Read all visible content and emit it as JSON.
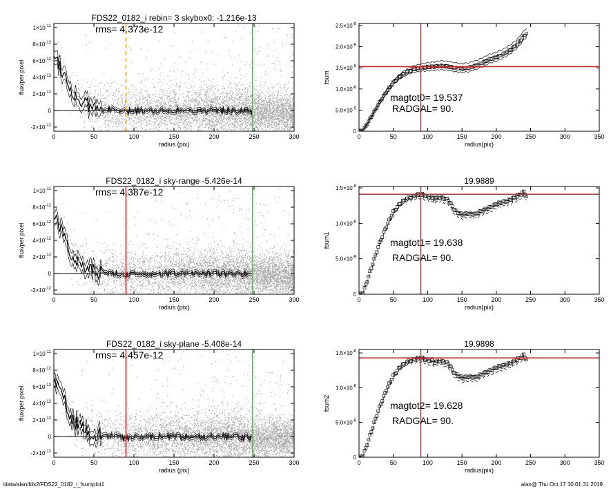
{
  "footer": {
    "path": "/data/alan/fds2/FDS22_0182_i_fsumplot1",
    "stamp": "alan@  Thu Oct 17 10:01:31 2019"
  },
  "colors": {
    "scatter": "#aaaaaa",
    "profile": "#000000",
    "radgal_line_dashed": "#f0a030",
    "radgal_line": "#dd2222",
    "sky_line": "#22dd22",
    "curve_marker": "#000000",
    "hline": "#dd2222"
  },
  "chart_data": [
    {
      "id": "profile-1",
      "type": "scatter",
      "title": "FDS22_0182_i rebin= 3    skybox0: -1.216e-13",
      "annotation": "rms= 4.373e-12",
      "xlabel": "radius (pix)",
      "ylabel": "flux/per pixel",
      "xlim": [
        0,
        300
      ],
      "ylim": [
        -2.5e-12,
        1.05e-11
      ],
      "xticks": [
        0,
        50,
        100,
        150,
        200,
        250,
        300
      ],
      "yticks": [
        {
          "value": -2e-12,
          "mant": "-2×10",
          "exp": "-12"
        },
        {
          "value": 0,
          "mant": "0",
          "exp": ""
        },
        {
          "value": 2e-12,
          "mant": "2×10",
          "exp": "-12"
        },
        {
          "value": 4e-12,
          "mant": "4×10",
          "exp": "-12"
        },
        {
          "value": 6e-12,
          "mant": "6×10",
          "exp": "-12"
        },
        {
          "value": 8e-12,
          "mant": "8×10",
          "exp": "-12"
        },
        {
          "value": 1e-11,
          "mant": "1×10",
          "exp": "-11"
        }
      ],
      "vlines": [
        {
          "x": 90,
          "color": "#f0a030",
          "dashed": true
        },
        {
          "x": 248,
          "color": "#22dd22",
          "dashed": false
        }
      ],
      "profile": {
        "x": [
          0,
          5,
          10,
          15,
          20,
          25,
          30,
          35,
          40,
          45,
          50,
          60,
          70,
          80,
          90,
          100,
          120,
          140,
          160,
          180,
          200,
          220,
          240,
          248
        ],
        "y": [
          7e-12,
          6e-12,
          5e-12,
          3.8e-12,
          2.8e-12,
          2e-12,
          1.3e-12,
          1e-12,
          7e-13,
          5e-13,
          3e-13,
          1.5e-13,
          1e-13,
          0,
          -2e-13,
          0,
          0,
          0,
          0,
          0,
          0,
          0,
          -1e-13,
          -2e-13
        ]
      }
    },
    {
      "id": "curve-1",
      "type": "line",
      "title": "",
      "annotations": [
        "magtot0=  19.537",
        "RADGAL=     90."
      ],
      "xlabel": "radius(pix)",
      "ylabel": "fsum",
      "xlim": [
        0,
        350
      ],
      "ylim": [
        0,
        2.55e-08
      ],
      "xticks": [
        0,
        50,
        100,
        150,
        200,
        250,
        300,
        350
      ],
      "yticks": [
        {
          "value": 0,
          "mant": "0",
          "exp": ""
        },
        {
          "value": 5e-09,
          "mant": "5.0×10",
          "exp": "-9"
        },
        {
          "value": 1e-08,
          "mant": "1.0×10",
          "exp": "-8"
        },
        {
          "value": 1.5e-08,
          "mant": "1.5×10",
          "exp": "-8"
        },
        {
          "value": 2e-08,
          "mant": "2.0×10",
          "exp": "-8"
        },
        {
          "value": 2.5e-08,
          "mant": "2.5×10",
          "exp": "-8"
        }
      ],
      "vline_x": 90,
      "hline_y": 1.53e-08,
      "curve": {
        "x": [
          0,
          5,
          10,
          15,
          20,
          25,
          30,
          40,
          50,
          60,
          70,
          80,
          90,
          100,
          110,
          120,
          130,
          140,
          150,
          160,
          170,
          180,
          190,
          200,
          210,
          220,
          230,
          240,
          245
        ],
        "y": [
          0,
          1e-10,
          1.2e-09,
          2.6e-09,
          4e-09,
          5.4e-09,
          6.8e-09,
          9.3e-09,
          1.15e-08,
          1.3e-08,
          1.4e-08,
          1.47e-08,
          1.5e-08,
          1.52e-08,
          1.53e-08,
          1.55e-08,
          1.53e-08,
          1.5e-08,
          1.48e-08,
          1.5e-08,
          1.55e-08,
          1.62e-08,
          1.7e-08,
          1.75e-08,
          1.82e-08,
          1.92e-08,
          2.05e-08,
          2.25e-08,
          2.33e-08
        ]
      },
      "envelope": {
        "upper_offset": 1.2e-09,
        "lower_offset": 9e-10
      }
    },
    {
      "id": "profile-2",
      "type": "scatter",
      "title": "FDS22_0182_i sky-range -5.426e-14",
      "annotation": "rms= 4.387e-12",
      "xlabel": "radius (pix)",
      "ylabel": "flux/per pixel",
      "xlim": [
        0,
        300
      ],
      "ylim": [
        -2.5e-12,
        1.05e-11
      ],
      "xticks": [
        0,
        50,
        100,
        150,
        200,
        250,
        300
      ],
      "yticks": [
        {
          "value": -2e-12,
          "mant": "-2×10",
          "exp": "-12"
        },
        {
          "value": 0,
          "mant": "0",
          "exp": ""
        },
        {
          "value": 2e-12,
          "mant": "2×10",
          "exp": "-12"
        },
        {
          "value": 4e-12,
          "mant": "4×10",
          "exp": "-12"
        },
        {
          "value": 6e-12,
          "mant": "6×10",
          "exp": "-12"
        },
        {
          "value": 8e-12,
          "mant": "8×10",
          "exp": "-12"
        },
        {
          "value": 1e-11,
          "mant": "1×10",
          "exp": "-11"
        }
      ],
      "vlines": [
        {
          "x": 90,
          "color": "#dd2222",
          "dashed": false
        },
        {
          "x": 248,
          "color": "#22dd22",
          "dashed": false
        }
      ],
      "profile": {
        "x": [
          0,
          5,
          10,
          15,
          20,
          25,
          30,
          35,
          40,
          45,
          50,
          60,
          70,
          80,
          90,
          100,
          120,
          140,
          160,
          180,
          200,
          220,
          240,
          248
        ],
        "y": [
          7e-12,
          6e-12,
          5e-12,
          3.8e-12,
          2.8e-12,
          2e-12,
          1.3e-12,
          1e-12,
          7e-13,
          5e-13,
          3e-13,
          1.5e-13,
          1e-13,
          0,
          -2e-13,
          0,
          0,
          0,
          0,
          0,
          0,
          0,
          -1e-13,
          -2e-13
        ]
      }
    },
    {
      "id": "curve-2",
      "type": "line",
      "title": "19.9889",
      "annotations": [
        "magtot1=  19.638",
        "RADGAL=     90."
      ],
      "xlabel": "radius(pix)",
      "ylabel": "fsum1",
      "xlim": [
        0,
        350
      ],
      "ylim": [
        0,
        1.52e-08
      ],
      "xticks": [
        0,
        50,
        100,
        150,
        200,
        250,
        300,
        350
      ],
      "yticks": [
        {
          "value": 0,
          "mant": "0",
          "exp": ""
        },
        {
          "value": 5e-09,
          "mant": "5.0×10",
          "exp": "-9"
        },
        {
          "value": 1e-08,
          "mant": "1.0×10",
          "exp": "-8"
        },
        {
          "value": 1.5e-08,
          "mant": "1.5×10",
          "exp": "-8"
        }
      ],
      "vline_x": 90,
      "hline_y": 1.41e-08,
      "curve": {
        "x": [
          0,
          5,
          10,
          15,
          20,
          25,
          30,
          40,
          50,
          60,
          70,
          80,
          90,
          100,
          110,
          120,
          130,
          140,
          150,
          160,
          170,
          180,
          190,
          200,
          210,
          220,
          230,
          240,
          245
        ],
        "y": [
          0,
          1e-10,
          1.3e-09,
          2.8e-09,
          4.3e-09,
          5.8e-09,
          7.2e-09,
          9.6e-09,
          1.16e-08,
          1.28e-08,
          1.35e-08,
          1.39e-08,
          1.41e-08,
          1.38e-08,
          1.35e-08,
          1.37e-08,
          1.33e-08,
          1.18e-08,
          1.12e-08,
          1.14e-08,
          1.13e-08,
          1.18e-08,
          1.22e-08,
          1.27e-08,
          1.3e-08,
          1.33e-08,
          1.38e-08,
          1.44e-08,
          1.38e-08
        ]
      },
      "envelope": {
        "upper_offset": 0,
        "lower_offset": 6e-10
      }
    },
    {
      "id": "profile-3",
      "type": "scatter",
      "title": "FDS22_0182_i sky-plane -5.408e-14",
      "annotation": "rms= 4.457e-12",
      "xlabel": "radius (pix)",
      "ylabel": "flux/per pixel",
      "xlim": [
        0,
        300
      ],
      "ylim": [
        -2.5e-12,
        1.05e-11
      ],
      "xticks": [
        0,
        50,
        100,
        150,
        200,
        250,
        300
      ],
      "yticks": [
        {
          "value": -2e-12,
          "mant": "-2×10",
          "exp": "-12"
        },
        {
          "value": 0,
          "mant": "0",
          "exp": ""
        },
        {
          "value": 2e-12,
          "mant": "2×10",
          "exp": "-12"
        },
        {
          "value": 4e-12,
          "mant": "4×10",
          "exp": "-12"
        },
        {
          "value": 6e-12,
          "mant": "6×10",
          "exp": "-12"
        },
        {
          "value": 8e-12,
          "mant": "8×10",
          "exp": "-12"
        },
        {
          "value": 1e-11,
          "mant": "1×10",
          "exp": "-11"
        }
      ],
      "vlines": [
        {
          "x": 90,
          "color": "#dd2222",
          "dashed": false
        },
        {
          "x": 248,
          "color": "#22dd22",
          "dashed": false
        }
      ],
      "profile": {
        "x": [
          0,
          5,
          10,
          15,
          20,
          25,
          30,
          35,
          40,
          45,
          50,
          60,
          70,
          80,
          90,
          100,
          120,
          140,
          160,
          180,
          200,
          220,
          240,
          248
        ],
        "y": [
          7e-12,
          6e-12,
          5e-12,
          3.8e-12,
          2.8e-12,
          2e-12,
          1.3e-12,
          1e-12,
          7e-13,
          5e-13,
          3e-13,
          1.5e-13,
          1e-13,
          0,
          -2e-13,
          0,
          0,
          0,
          0,
          0,
          0,
          0,
          -1e-13,
          -2e-13
        ]
      }
    },
    {
      "id": "curve-3",
      "type": "line",
      "title": "19.9898",
      "annotations": [
        "magtot2=  19.628",
        "RADGAL=     90."
      ],
      "xlabel": "radius(pix)",
      "ylabel": "fsum2",
      "xlim": [
        0,
        350
      ],
      "ylim": [
        0,
        1.55e-08
      ],
      "xticks": [
        0,
        50,
        100,
        150,
        200,
        250,
        300,
        350
      ],
      "yticks": [
        {
          "value": 0,
          "mant": "0",
          "exp": ""
        },
        {
          "value": 5e-09,
          "mant": "5.0×10",
          "exp": "-9"
        },
        {
          "value": 1e-08,
          "mant": "1.0×10",
          "exp": "-8"
        },
        {
          "value": 1.5e-08,
          "mant": "1.5×10",
          "exp": "-8"
        }
      ],
      "vline_x": 90,
      "hline_y": 1.43e-08,
      "curve": {
        "x": [
          0,
          5,
          10,
          15,
          20,
          25,
          30,
          40,
          50,
          60,
          70,
          80,
          90,
          100,
          110,
          120,
          130,
          140,
          150,
          160,
          170,
          180,
          190,
          200,
          210,
          220,
          230,
          240,
          245
        ],
        "y": [
          0,
          1e-10,
          1.3e-09,
          2.8e-09,
          4.3e-09,
          5.8e-09,
          7.2e-09,
          9.7e-09,
          1.17e-08,
          1.3e-08,
          1.37e-08,
          1.41e-08,
          1.43e-08,
          1.4e-08,
          1.37e-08,
          1.39e-08,
          1.35e-08,
          1.2e-08,
          1.14e-08,
          1.16e-08,
          1.15e-08,
          1.2e-08,
          1.24e-08,
          1.29e-08,
          1.32e-08,
          1.35e-08,
          1.4e-08,
          1.47e-08,
          1.4e-08
        ]
      },
      "envelope": {
        "upper_offset": 0,
        "lower_offset": 6e-10
      }
    }
  ]
}
